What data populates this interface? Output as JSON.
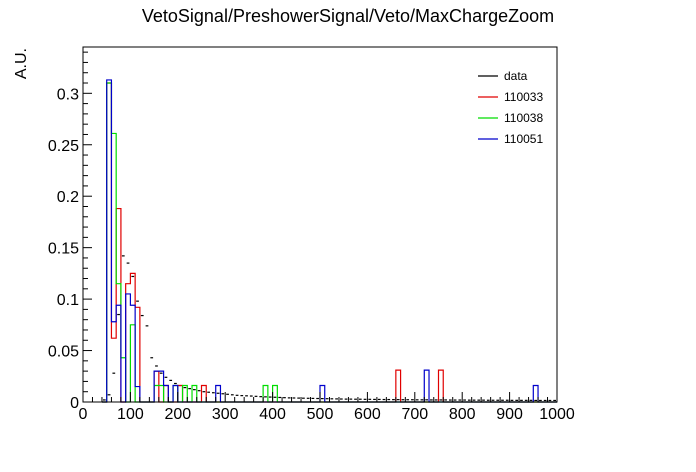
{
  "chart_data": {
    "type": "line",
    "title": "VetoSignal/PreshowerSignal/Veto/MaxChargeZoom",
    "xlabel": "",
    "ylabel": "A.U.",
    "xlim": [
      0,
      1000
    ],
    "ylim": [
      0,
      0.345
    ],
    "xticks": [
      0,
      100,
      200,
      300,
      400,
      500,
      600,
      700,
      800,
      900,
      1000
    ],
    "xtick_labels": [
      "0",
      "100",
      "200",
      "300",
      "400",
      "500",
      "600",
      "700",
      "800",
      "900",
      "1000"
    ],
    "yticks": [
      0,
      0.05,
      0.1,
      0.15,
      0.2,
      0.25,
      0.3
    ],
    "ytick_labels": [
      "0",
      "0.05",
      "0.1",
      "0.15",
      "0.2",
      "0.25",
      "0.3"
    ],
    "grid": false,
    "legend_position": "top-right",
    "bin_width": 10,
    "series": [
      {
        "name": "data",
        "style": "markers",
        "color": "#000000",
        "x": [
          45,
          55,
          65,
          75,
          85,
          95,
          105,
          115,
          125,
          135,
          145,
          155,
          165,
          175,
          185,
          195,
          205,
          215,
          225,
          235,
          245,
          255,
          265,
          275,
          285,
          295,
          305,
          315,
          325,
          335,
          345,
          355,
          365,
          375,
          385,
          395,
          405,
          415,
          425,
          435,
          445,
          455,
          465,
          475,
          485,
          495,
          505,
          515,
          525,
          535,
          545,
          555,
          565,
          575,
          585,
          595,
          605,
          615,
          625,
          635,
          645,
          655,
          665,
          675,
          685,
          695,
          705,
          715,
          725,
          735,
          745,
          755,
          765,
          775,
          785,
          795,
          805,
          815,
          825,
          835,
          845,
          855,
          865,
          875,
          885,
          895,
          905,
          915,
          925,
          935,
          945,
          955,
          965,
          975,
          985,
          995
        ],
        "y": [
          0.002,
          0.007,
          0.028,
          0.085,
          0.142,
          0.135,
          0.122,
          0.098,
          0.084,
          0.074,
          0.043,
          0.035,
          0.028,
          0.024,
          0.021,
          0.018,
          0.016,
          0.014,
          0.013,
          0.012,
          0.011,
          0.01,
          0.0095,
          0.009,
          0.0085,
          0.008,
          0.0075,
          0.007,
          0.0065,
          0.0062,
          0.006,
          0.0058,
          0.0055,
          0.0052,
          0.005,
          0.0048,
          0.0046,
          0.0044,
          0.0042,
          0.004,
          0.0039,
          0.0038,
          0.0037,
          0.0036,
          0.0035,
          0.0034,
          0.0033,
          0.0032,
          0.0031,
          0.003,
          0.0029,
          0.0028,
          0.0028,
          0.0027,
          0.0027,
          0.0026,
          0.0026,
          0.0025,
          0.0025,
          0.0024,
          0.0024,
          0.0023,
          0.0023,
          0.0022,
          0.0022,
          0.0022,
          0.0021,
          0.0021,
          0.0021,
          0.002,
          0.002,
          0.002,
          0.002,
          0.0019,
          0.0019,
          0.0019,
          0.0019,
          0.0018,
          0.0018,
          0.0018,
          0.0018,
          0.0017,
          0.0017,
          0.0017,
          0.0017,
          0.0017,
          0.0016,
          0.0016,
          0.0016,
          0.0016,
          0.0016,
          0.0015,
          0.0015,
          0.0015,
          0.0015,
          0.0015
        ]
      },
      {
        "name": "110033",
        "style": "step",
        "color": "#e00000",
        "x": [
          40,
          50,
          60,
          70,
          80,
          90,
          100,
          110,
          120,
          130,
          140,
          150,
          160,
          170,
          180,
          190,
          200,
          210,
          220,
          230,
          240,
          250,
          260,
          270,
          280,
          290,
          300,
          650,
          660,
          670,
          740,
          750,
          760,
          1000
        ],
        "y": [
          0,
          0.31,
          0.062,
          0.188,
          0.0,
          0.115,
          0.125,
          0.092,
          0.0,
          0.0,
          0.0,
          0.03,
          0.0,
          0.016,
          0.0,
          0.0,
          0.016,
          0.0,
          0.0,
          0.0,
          0.0,
          0.016,
          0.0,
          0.0,
          0.0,
          0.0,
          0.0,
          0.0,
          0.031,
          0.0,
          0.0,
          0.031,
          0.0,
          0.0
        ]
      },
      {
        "name": "110038",
        "style": "step",
        "color": "#00dd00",
        "x": [
          40,
          50,
          60,
          70,
          80,
          90,
          100,
          110,
          120,
          130,
          140,
          150,
          160,
          170,
          180,
          190,
          200,
          210,
          220,
          230,
          240,
          250,
          260,
          270,
          280,
          290,
          300,
          370,
          380,
          390,
          400,
          410,
          1000
        ],
        "y": [
          0,
          0.31,
          0.261,
          0.115,
          0.043,
          0.0,
          0.075,
          0.0,
          0.0,
          0.0,
          0.0,
          0.016,
          0.016,
          0.0,
          0.0,
          0.016,
          0.0,
          0.016,
          0.0,
          0.016,
          0.0,
          0.0,
          0.0,
          0.0,
          0.0,
          0.0,
          0.0,
          0.0,
          0.016,
          0.0,
          0.016,
          0.0,
          0.0
        ]
      },
      {
        "name": "110051",
        "style": "step",
        "color": "#0000cc",
        "x": [
          40,
          50,
          60,
          70,
          80,
          90,
          100,
          110,
          120,
          130,
          140,
          150,
          160,
          170,
          180,
          190,
          200,
          210,
          220,
          230,
          240,
          250,
          260,
          270,
          280,
          290,
          300,
          490,
          500,
          510,
          710,
          720,
          730,
          940,
          950,
          960,
          1000
        ],
        "y": [
          0,
          0.313,
          0.078,
          0.094,
          0.0,
          0.105,
          0.094,
          0.015,
          0.0,
          0.0,
          0.0,
          0.03,
          0.03,
          0.016,
          0.0,
          0.016,
          0.0,
          0.0,
          0.0,
          0.0,
          0.0,
          0.0,
          0.0,
          0.0,
          0.016,
          0.0,
          0.0,
          0.0,
          0.016,
          0.0,
          0.0,
          0.031,
          0.0,
          0.0,
          0.016,
          0.0,
          0.0
        ]
      }
    ]
  }
}
